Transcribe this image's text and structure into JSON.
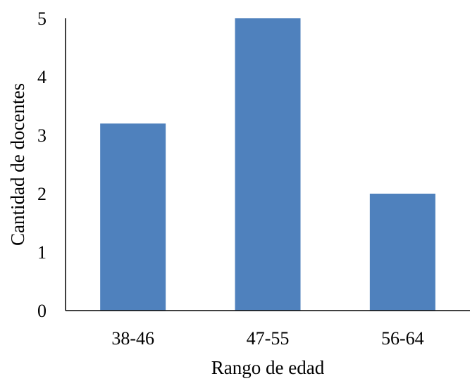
{
  "chart_data": {
    "type": "bar",
    "categories": [
      "38-46",
      "47-55",
      "56-64"
    ],
    "values": [
      3.2,
      5,
      2
    ],
    "xlabel": "Rango de edad",
    "ylabel": "Cantidad de docentes",
    "ylim": [
      0,
      5
    ],
    "yticks": [
      "0",
      "1",
      "2",
      "3",
      "4",
      "5"
    ],
    "grid": false,
    "legend": "none",
    "bar_color": "#4f81bd",
    "axis_color": "#000000"
  }
}
